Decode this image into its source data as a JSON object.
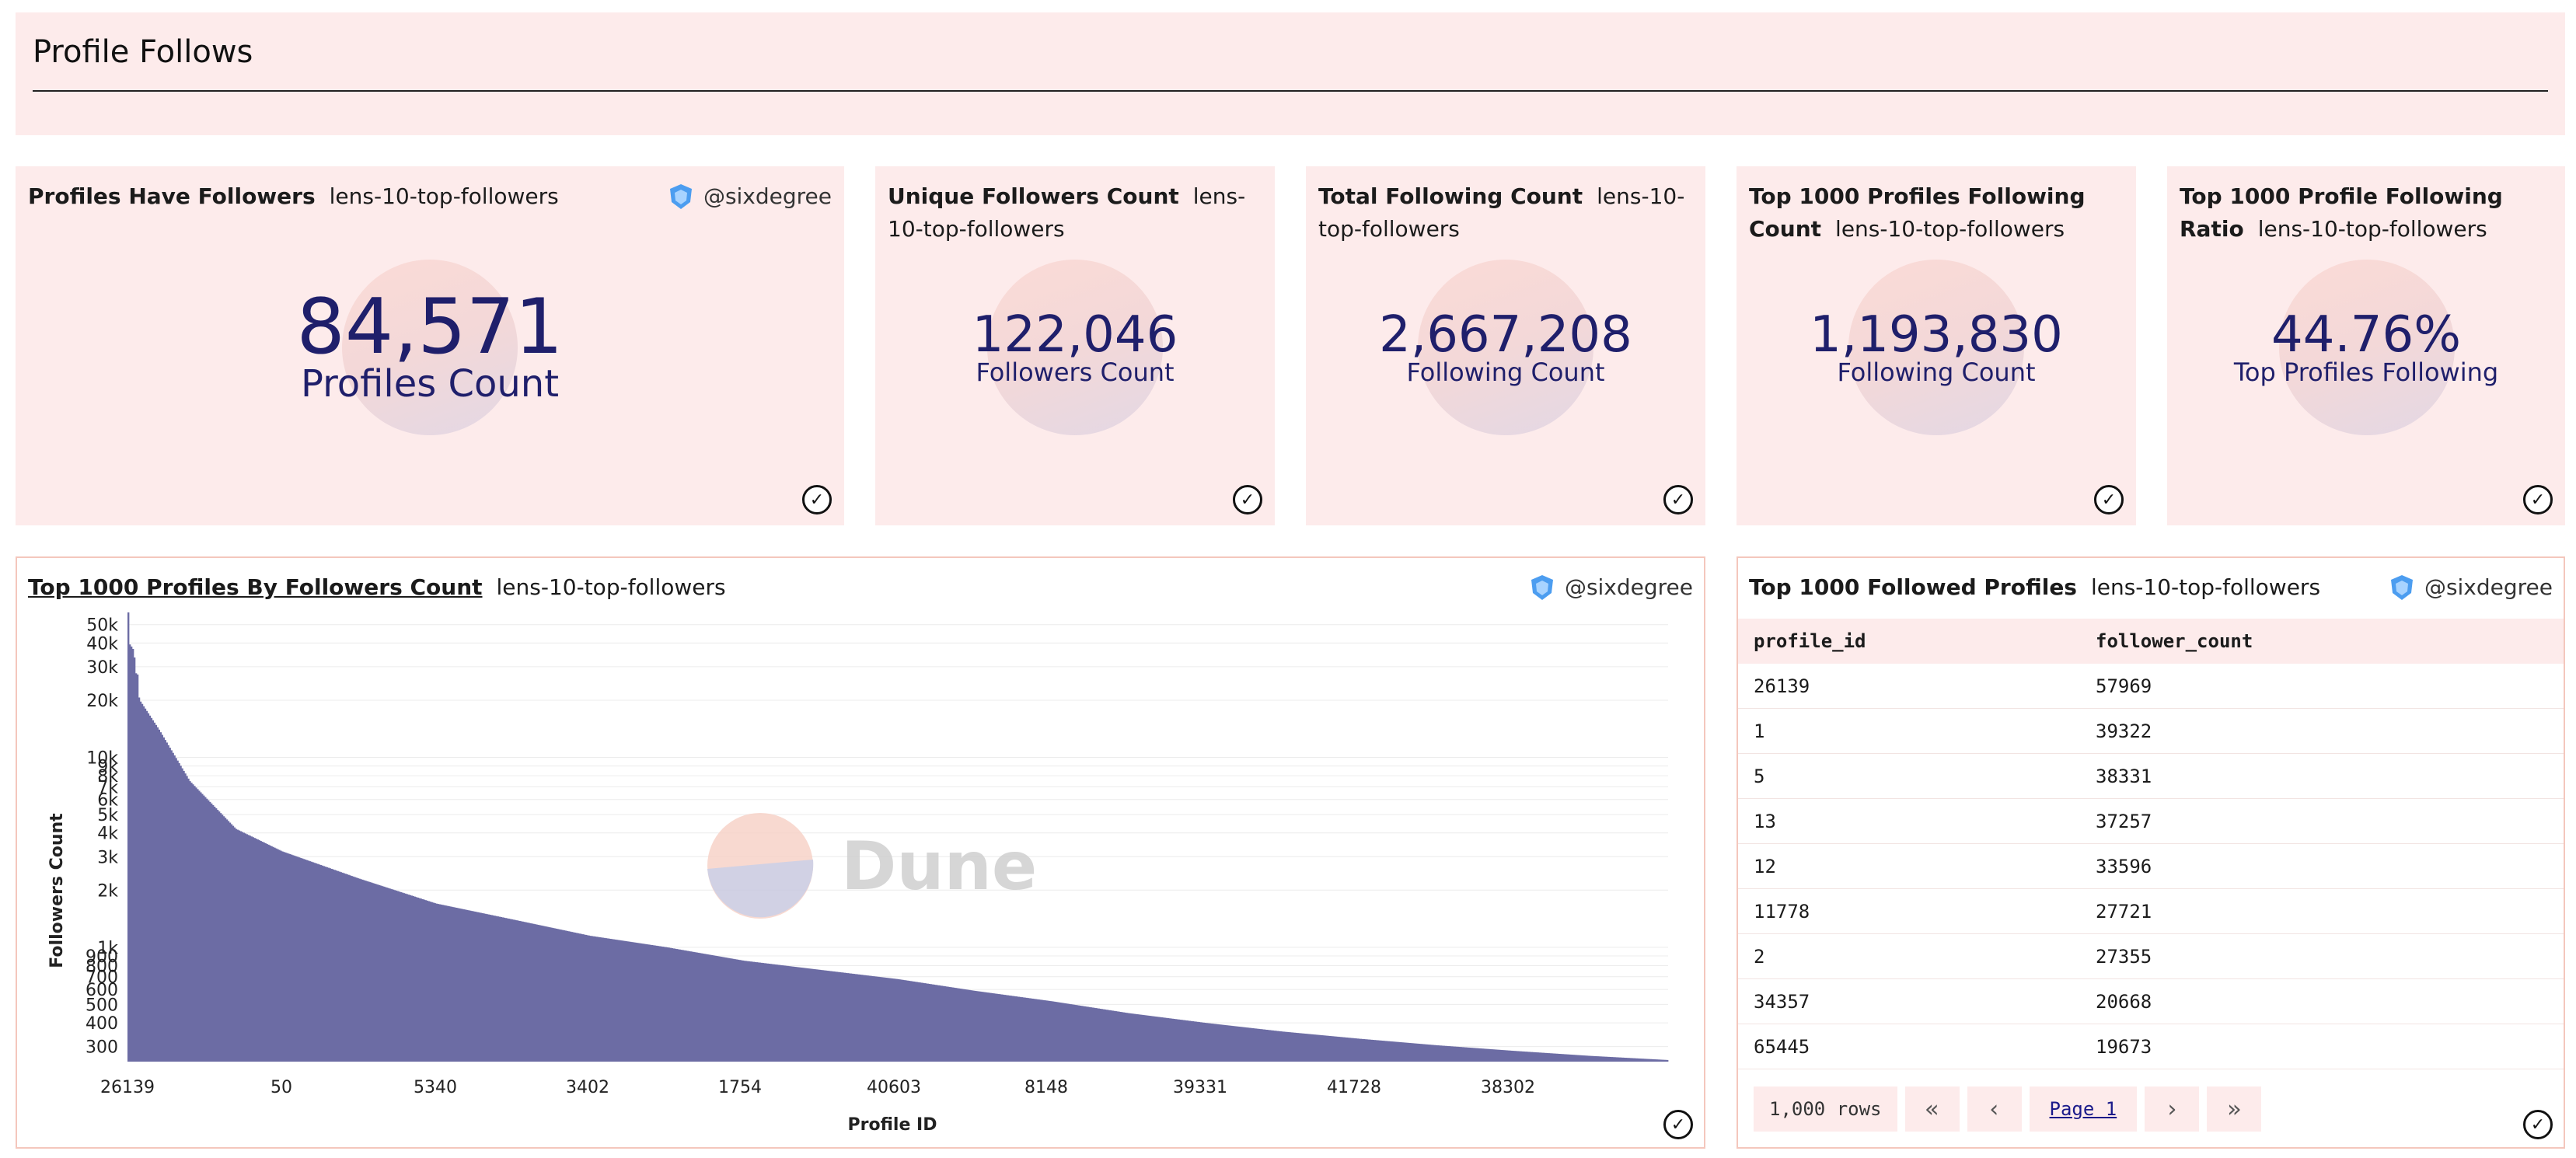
{
  "header": {
    "title": "Profile Follows"
  },
  "byline": {
    "user": "@sixdegree"
  },
  "counters": [
    {
      "title": "Profiles Have Followers",
      "query": "lens-10-top-followers",
      "value": "84,571",
      "label": "Profiles Count",
      "show_byline": true
    },
    {
      "title": "Unique Followers Count",
      "query": "lens-10-top-followers",
      "value": "122,046",
      "label": "Followers Count",
      "show_byline": false
    },
    {
      "title": "Total Following Count",
      "query": "lens-10-top-followers",
      "value": "2,667,208",
      "label": "Following Count",
      "show_byline": false
    },
    {
      "title": "Top 1000 Profiles Following Count",
      "query": "lens-10-top-followers",
      "value": "1,193,830",
      "label": "Following Count",
      "show_byline": false
    },
    {
      "title": "Top 1000 Profile Following Ratio",
      "query": "lens-10-top-followers",
      "value": "44.76%",
      "label": "Top Profiles Following",
      "show_byline": false
    }
  ],
  "chart_panel": {
    "title": "Top 1000 Profiles By Followers Count",
    "query": "lens-10-top-followers",
    "watermark": "Dune"
  },
  "chart_data": {
    "type": "bar",
    "title": "Top 1000 Profiles By Followers Count",
    "xlabel": "Profile ID",
    "ylabel": "Followers Count",
    "yscale": "log",
    "ylim": [
      250,
      57969
    ],
    "yticks": [
      300,
      400,
      500,
      600,
      700,
      800,
      900,
      1000,
      2000,
      3000,
      4000,
      5000,
      6000,
      7000,
      8000,
      9000,
      10000,
      20000,
      30000,
      40000,
      50000
    ],
    "ytick_labels": [
      "300",
      "400",
      "500",
      "600",
      "700",
      "800",
      "900",
      "1k",
      "2k",
      "3k",
      "4k",
      "5k",
      "6k",
      "7k",
      "8k",
      "9k",
      "10k",
      "20k",
      "30k",
      "40k",
      "50k"
    ],
    "xtick_labels": [
      "26139",
      "50",
      "5340",
      "3402",
      "1754",
      "40603",
      "8148",
      "39331",
      "41728",
      "38302"
    ],
    "bar_count": 1000,
    "curve": [
      [
        0,
        57969
      ],
      [
        0.001,
        39322
      ],
      [
        0.002,
        38331
      ],
      [
        0.003,
        37257
      ],
      [
        0.004,
        33596
      ],
      [
        0.005,
        27721
      ],
      [
        0.006,
        27355
      ],
      [
        0.007,
        20668
      ],
      [
        0.008,
        19673
      ],
      [
        0.02,
        14000
      ],
      [
        0.04,
        7500
      ],
      [
        0.07,
        4200
      ],
      [
        0.1,
        3200
      ],
      [
        0.15,
        2300
      ],
      [
        0.2,
        1700
      ],
      [
        0.25,
        1400
      ],
      [
        0.3,
        1150
      ],
      [
        0.35,
        1000
      ],
      [
        0.4,
        850
      ],
      [
        0.45,
        760
      ],
      [
        0.5,
        680
      ],
      [
        0.55,
        590
      ],
      [
        0.6,
        520
      ],
      [
        0.65,
        450
      ],
      [
        0.7,
        400
      ],
      [
        0.75,
        360
      ],
      [
        0.8,
        330
      ],
      [
        0.85,
        305
      ],
      [
        0.9,
        285
      ],
      [
        0.95,
        268
      ],
      [
        1.0,
        255
      ]
    ],
    "grid": true,
    "legend": "none",
    "bar_color": "#6c6ca4"
  },
  "table_panel": {
    "title": "Top 1000 Followed Profiles",
    "query": "lens-10-top-followers",
    "columns": [
      "profile_id",
      "follower_count"
    ],
    "rows": [
      [
        "26139",
        "57969"
      ],
      [
        "1",
        "39322"
      ],
      [
        "5",
        "38331"
      ],
      [
        "13",
        "37257"
      ],
      [
        "12",
        "33596"
      ],
      [
        "11778",
        "27721"
      ],
      [
        "2",
        "27355"
      ],
      [
        "34357",
        "20668"
      ],
      [
        "65445",
        "19673"
      ]
    ],
    "row_count": "1,000 rows",
    "page": "Page 1",
    "icons": {
      "first": "«",
      "prev": "‹",
      "next": "›",
      "last": "»"
    }
  },
  "icons": {
    "check": "✓",
    "avatar": "shield-avatar-icon"
  }
}
